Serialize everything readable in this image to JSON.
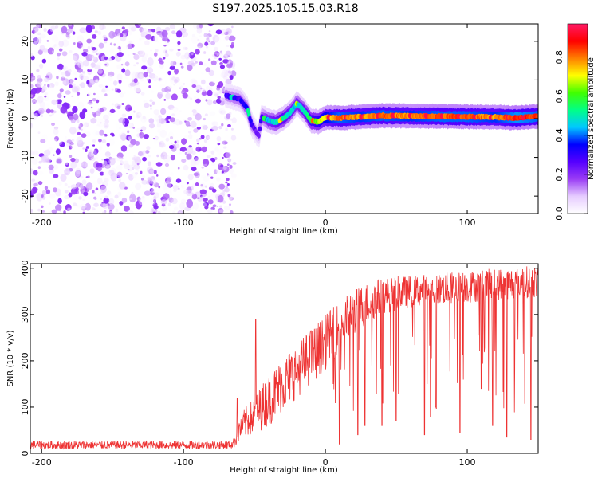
{
  "title": "S197.2025.105.15.03.R18",
  "chart_data": [
    {
      "type": "heatmap",
      "xlabel": "Height of straight line (km)",
      "ylabel": "Frequency (Hz)",
      "xlim": [
        -208,
        150
      ],
      "ylim": [
        -24.5,
        24.5
      ],
      "x_ticks": [
        -200,
        -100,
        0,
        100
      ],
      "y_ticks": [
        -20,
        -10,
        0,
        10,
        20
      ],
      "colorbar": {
        "label": "Normalized spectral amplitude",
        "range": [
          0,
          0.97
        ],
        "ticks": [
          0.0,
          0.2,
          0.4,
          0.6,
          0.8
        ],
        "colormap": [
          "#ffffff",
          "#e6ccff",
          "#9a3cf5",
          "#5500ff",
          "#0000ff",
          "#00c8ff",
          "#00ff88",
          "#40ff00",
          "#ffff00",
          "#ff8000",
          "#ff0000",
          "#ff1a66"
        ]
      },
      "noise_region": {
        "x_from": -208,
        "x_to": -67,
        "level": 0.1
      },
      "ridge": [
        {
          "x": -70,
          "f": 6.0,
          "a": 0.28
        },
        {
          "x": -60,
          "f": 5.0,
          "a": 0.3
        },
        {
          "x": -55,
          "f": 2.5,
          "a": 0.35
        },
        {
          "x": -52,
          "f": -1.5,
          "a": 0.3
        },
        {
          "x": -47,
          "f": -4.5,
          "a": 0.22
        },
        {
          "x": -45,
          "f": 0.5,
          "a": 0.32
        },
        {
          "x": -40,
          "f": -0.5,
          "a": 0.45
        },
        {
          "x": -35,
          "f": -1.0,
          "a": 0.5
        },
        {
          "x": -30,
          "f": 0.0,
          "a": 0.55
        },
        {
          "x": -25,
          "f": 1.5,
          "a": 0.5
        },
        {
          "x": -20,
          "f": 4.0,
          "a": 0.45
        },
        {
          "x": -15,
          "f": 2.0,
          "a": 0.5
        },
        {
          "x": -10,
          "f": -0.5,
          "a": 0.6
        },
        {
          "x": -5,
          "f": -0.8,
          "a": 0.65
        },
        {
          "x": 0,
          "f": 0.3,
          "a": 0.75
        },
        {
          "x": 10,
          "f": 0.2,
          "a": 0.85
        },
        {
          "x": 25,
          "f": 0.5,
          "a": 0.8
        },
        {
          "x": 40,
          "f": 0.8,
          "a": 0.85
        },
        {
          "x": 60,
          "f": 0.7,
          "a": 0.8
        },
        {
          "x": 80,
          "f": 0.6,
          "a": 0.85
        },
        {
          "x": 100,
          "f": 0.5,
          "a": 0.85
        },
        {
          "x": 120,
          "f": 0.4,
          "a": 0.8
        },
        {
          "x": 135,
          "f": 0.2,
          "a": 0.9
        },
        {
          "x": 150,
          "f": 0.6,
          "a": 0.85
        }
      ]
    },
    {
      "type": "line",
      "xlabel": "Height of straight line (km)",
      "ylabel": "SNR (10 * v/v)",
      "xlim": [
        -208,
        150
      ],
      "ylim": [
        0,
        410
      ],
      "x_ticks": [
        -200,
        -100,
        0,
        100
      ],
      "y_ticks": [
        0,
        100,
        200,
        300,
        400
      ],
      "color": "#ee3333",
      "series": [
        {
          "name": "",
          "x": [
            -208,
            -180,
            -150,
            -120,
            -90,
            -70,
            -65,
            -60,
            -55,
            -50,
            -45,
            -40,
            -35,
            -30,
            -20,
            -10,
            0,
            10,
            20,
            30,
            40,
            60,
            80,
            100,
            120,
            140,
            150
          ],
          "y": [
            18,
            18,
            18,
            18,
            18,
            18,
            20,
            55,
            70,
            80,
            100,
            115,
            130,
            150,
            180,
            210,
            240,
            275,
            305,
            325,
            340,
            350,
            355,
            360,
            365,
            370,
            372
          ],
          "spread": [
            9,
            9,
            9,
            9,
            9,
            9,
            10,
            30,
            35,
            40,
            50,
            55,
            60,
            60,
            60,
            60,
            60,
            55,
            50,
            45,
            40,
            35,
            35,
            35,
            35,
            35,
            35
          ]
        }
      ],
      "spikes": [
        {
          "x": -62,
          "y": 120
        },
        {
          "x": -49,
          "y": 290
        },
        {
          "x": -10,
          "y": 265
        },
        {
          "x": 10,
          "y": 20
        },
        {
          "x": 23,
          "y": 40
        },
        {
          "x": 28,
          "y": 60
        },
        {
          "x": 40,
          "y": 60
        },
        {
          "x": 50,
          "y": 70
        },
        {
          "x": 70,
          "y": 40
        },
        {
          "x": 78,
          "y": 100
        },
        {
          "x": 95,
          "y": 45
        },
        {
          "x": 110,
          "y": 140
        },
        {
          "x": 118,
          "y": 60
        },
        {
          "x": 128,
          "y": 35
        },
        {
          "x": 145,
          "y": 30
        }
      ]
    }
  ]
}
